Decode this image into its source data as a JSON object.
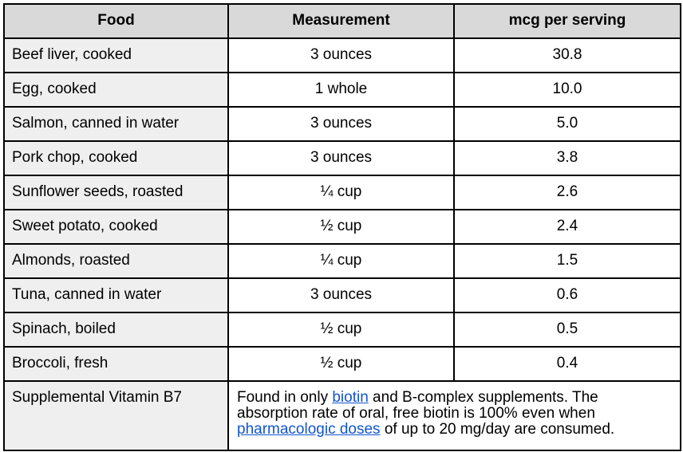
{
  "table": {
    "headers": [
      "Food",
      "Measurement",
      "mcg per serving"
    ],
    "rows": [
      {
        "food": "Beef liver, cooked",
        "measurement": "3 ounces",
        "mcg": "30.8"
      },
      {
        "food": "Egg, cooked",
        "measurement": "1 whole",
        "mcg": "10.0"
      },
      {
        "food": "Salmon, canned in water",
        "measurement": "3 ounces",
        "mcg": "5.0"
      },
      {
        "food": "Pork chop, cooked",
        "measurement": "3 ounces",
        "mcg": "3.8"
      },
      {
        "food": "Sunflower seeds, roasted",
        "measurement": "¼ cup",
        "mcg": "2.6"
      },
      {
        "food": "Sweet potato, cooked",
        "measurement": "½ cup",
        "mcg": "2.4"
      },
      {
        "food": "Almonds, roasted",
        "measurement": "¼ cup",
        "mcg": "1.5"
      },
      {
        "food": "Tuna, canned in water",
        "measurement": "3 ounces",
        "mcg": "0.6"
      },
      {
        "food": "Spinach, boiled",
        "measurement": "½ cup",
        "mcg": "0.5"
      },
      {
        "food": "Broccoli, fresh",
        "measurement": "½ cup",
        "mcg": "0.4"
      }
    ],
    "note_row": {
      "label": "Supplemental Vitamin B7",
      "segments": [
        {
          "type": "text",
          "text": "Found in only "
        },
        {
          "type": "link",
          "text": "biotin"
        },
        {
          "type": "text",
          "text": " and B-complex supplements. The absorption rate of oral, free biotin is 100% even when "
        },
        {
          "type": "link",
          "text": "pharmacologic doses"
        },
        {
          "type": "text",
          "text": " of up to 20 mg/day are consumed."
        }
      ]
    },
    "colors": {
      "header_bg": "#d9d9d9",
      "food_column_bg": "#efefef",
      "border": "#000000",
      "link": "#1155cc"
    }
  }
}
